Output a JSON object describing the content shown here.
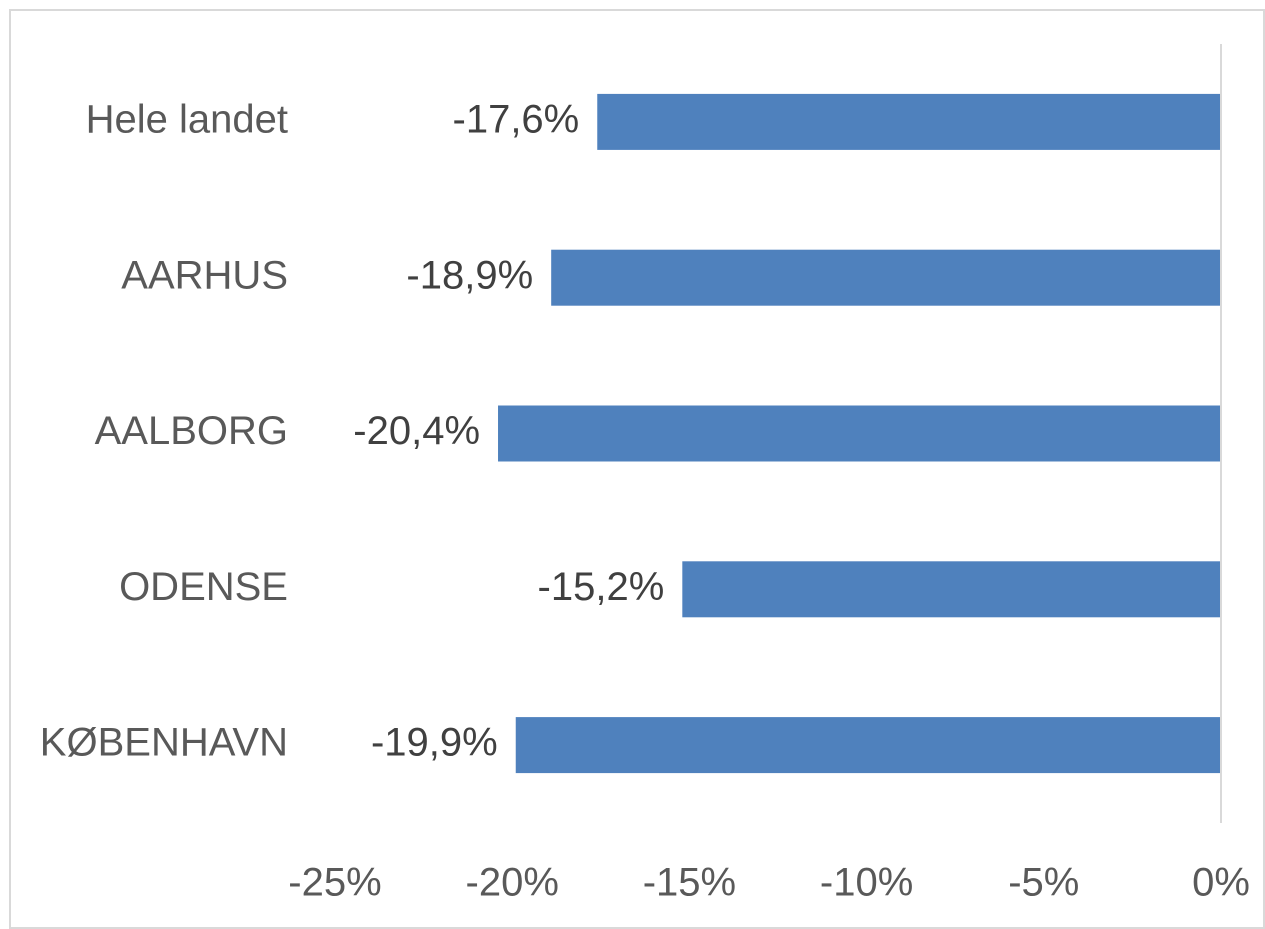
{
  "chart_data": {
    "type": "barh",
    "categories": [
      "Hele landet",
      "AARHUS",
      "AALBORG",
      "ODENSE",
      "KØBENHAVN"
    ],
    "values": [
      -17.6,
      -18.9,
      -20.4,
      -15.2,
      -19.9
    ],
    "value_labels": [
      "-17,6%",
      "-18,9%",
      "-20,4%",
      "-15,2%",
      "-19,9%"
    ],
    "color": "#4f81bd",
    "xlim": [
      -25,
      0
    ],
    "xticks": [
      {
        "value": -25,
        "label": "-25%"
      },
      {
        "value": -20,
        "label": "-20%"
      },
      {
        "value": -15,
        "label": "-15%"
      },
      {
        "value": -10,
        "label": "-10%"
      },
      {
        "value": -5,
        "label": "-5%"
      },
      {
        "value": 0,
        "label": "0%"
      }
    ],
    "grid": false
  }
}
